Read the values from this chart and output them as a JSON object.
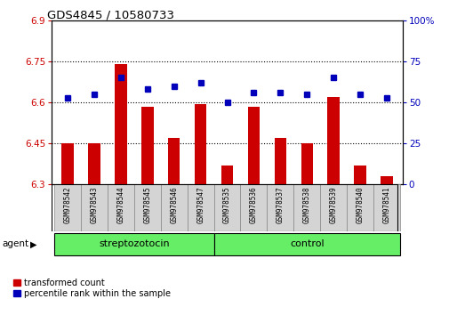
{
  "title": "GDS4845 / 10580733",
  "samples": [
    "GSM978542",
    "GSM978543",
    "GSM978544",
    "GSM978545",
    "GSM978546",
    "GSM978547",
    "GSM978535",
    "GSM978536",
    "GSM978537",
    "GSM978538",
    "GSM978539",
    "GSM978540",
    "GSM978541"
  ],
  "red_values": [
    6.45,
    6.45,
    6.74,
    6.585,
    6.47,
    6.595,
    6.37,
    6.585,
    6.47,
    6.45,
    6.62,
    6.37,
    6.33
  ],
  "blue_values": [
    53,
    55,
    65,
    58,
    60,
    62,
    50,
    56,
    56,
    55,
    65,
    55,
    53
  ],
  "ylim_left": [
    6.3,
    6.9
  ],
  "ylim_right": [
    0,
    100
  ],
  "yticks_left": [
    6.3,
    6.45,
    6.6,
    6.75,
    6.9
  ],
  "yticks_right": [
    0,
    25,
    50,
    75,
    100
  ],
  "group1_label": "streptozotocin",
  "group2_label": "control",
  "group1_count": 6,
  "group2_count": 7,
  "red_color": "#cc0000",
  "blue_color": "#0000bb",
  "bar_bottom": 6.3,
  "legend_red_label": "transformed count",
  "legend_blue_label": "percentile rank within the sample",
  "agent_label": "agent",
  "grid_ticks": [
    6.45,
    6.6,
    6.75
  ],
  "label_bg": "#d4d4d4",
  "green_color": "#66ee66",
  "bar_width": 0.45
}
